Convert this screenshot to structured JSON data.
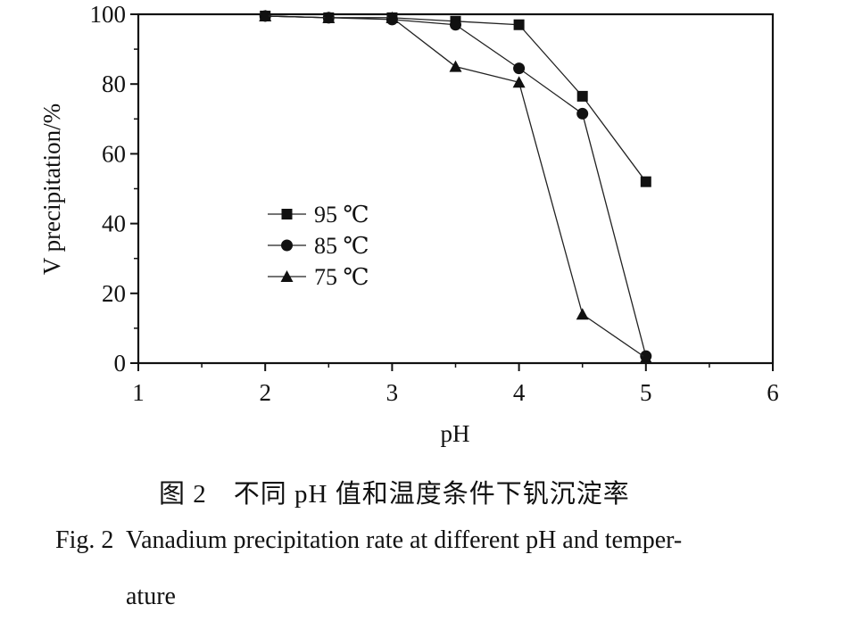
{
  "chart_data": {
    "type": "line",
    "title": "",
    "xlabel": "pH",
    "ylabel": "V precipitation/%",
    "xlim": [
      1,
      6
    ],
    "ylim": [
      0,
      100
    ],
    "x_ticks": [
      1,
      2,
      3,
      4,
      5,
      6
    ],
    "y_ticks": [
      0,
      20,
      40,
      60,
      80,
      100
    ],
    "grid": false,
    "legend_position": "center-left",
    "series": [
      {
        "name": "95 ℃",
        "marker": "square",
        "x": [
          2,
          2.5,
          3,
          3.5,
          4,
          4.5,
          5
        ],
        "y": [
          99.5,
          99,
          99,
          98,
          97,
          76.5,
          52
        ]
      },
      {
        "name": "85 ℃",
        "marker": "circle",
        "x": [
          2,
          2.5,
          3,
          3.5,
          4,
          4.5,
          5
        ],
        "y": [
          99.5,
          99,
          98.5,
          97,
          84.5,
          71.5,
          2
        ]
      },
      {
        "name": "75 ℃",
        "marker": "triangle",
        "x": [
          2,
          2.5,
          3,
          3.5,
          4,
          4.5,
          5
        ],
        "y": [
          99.5,
          99,
          99,
          85,
          80.5,
          14,
          1.5
        ]
      }
    ]
  },
  "caption": {
    "cn": "图 2　不同 pH 值和温度条件下钒沉淀率",
    "en_label": "Fig. 2",
    "en_line1": "Vanadium precipitation rate at different pH and temper-",
    "en_line2": "ature"
  }
}
